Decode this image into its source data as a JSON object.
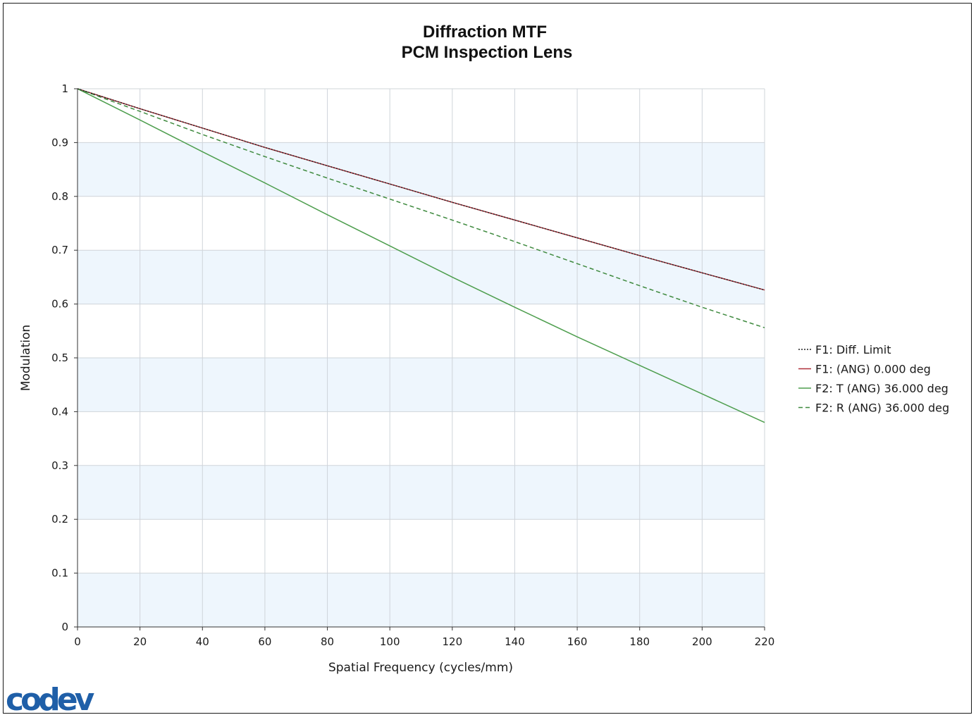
{
  "chart_data": {
    "type": "line",
    "title": "Diffraction MTF",
    "subtitle": "PCM Inspection Lens",
    "xlabel": "Spatial Frequency (cycles/mm)",
    "ylabel": "Modulation",
    "xlim": [
      0,
      220
    ],
    "ylim": [
      0,
      1
    ],
    "x_ticks": [
      "0",
      "20",
      "40",
      "60",
      "80",
      "100",
      "120",
      "140",
      "160",
      "180",
      "200",
      "220"
    ],
    "y_ticks": [
      "0",
      "0.1",
      "0.2",
      "0.3",
      "0.4",
      "0.5",
      "0.6",
      "0.7",
      "0.8",
      "0.9",
      "1"
    ],
    "grid": true,
    "banded_background": true,
    "band_color": "#eef6fd",
    "legend_position": "right",
    "x": [
      0,
      20,
      40,
      60,
      80,
      100,
      120,
      140,
      160,
      180,
      200,
      220
    ],
    "series": [
      {
        "name": "F1: Diff. Limit",
        "color": "#222222",
        "dash": "dotted",
        "values": [
          1.0,
          0.963,
          0.927,
          0.891,
          0.857,
          0.823,
          0.789,
          0.756,
          0.723,
          0.69,
          0.658,
          0.626
        ]
      },
      {
        "name": "F1: (ANG) 0.000 deg",
        "color": "#b0303a",
        "dash": "solid",
        "values": [
          1.0,
          0.963,
          0.927,
          0.891,
          0.857,
          0.823,
          0.789,
          0.756,
          0.723,
          0.69,
          0.658,
          0.626
        ]
      },
      {
        "name": "F2: T (ANG) 36.000 deg",
        "color": "#4e9e4e",
        "dash": "solid",
        "values": [
          1.0,
          0.942,
          0.883,
          0.825,
          0.766,
          0.708,
          0.65,
          0.594,
          0.539,
          0.486,
          0.433,
          0.38
        ]
      },
      {
        "name": "F2: R (ANG) 36.000 deg",
        "color": "#3f8a3f",
        "dash": "dashed",
        "values": [
          1.0,
          0.958,
          0.915,
          0.874,
          0.834,
          0.795,
          0.756,
          0.716,
          0.675,
          0.634,
          0.594,
          0.556
        ]
      }
    ]
  },
  "logo": {
    "text": "codev",
    "color": "#1f5fa8"
  }
}
